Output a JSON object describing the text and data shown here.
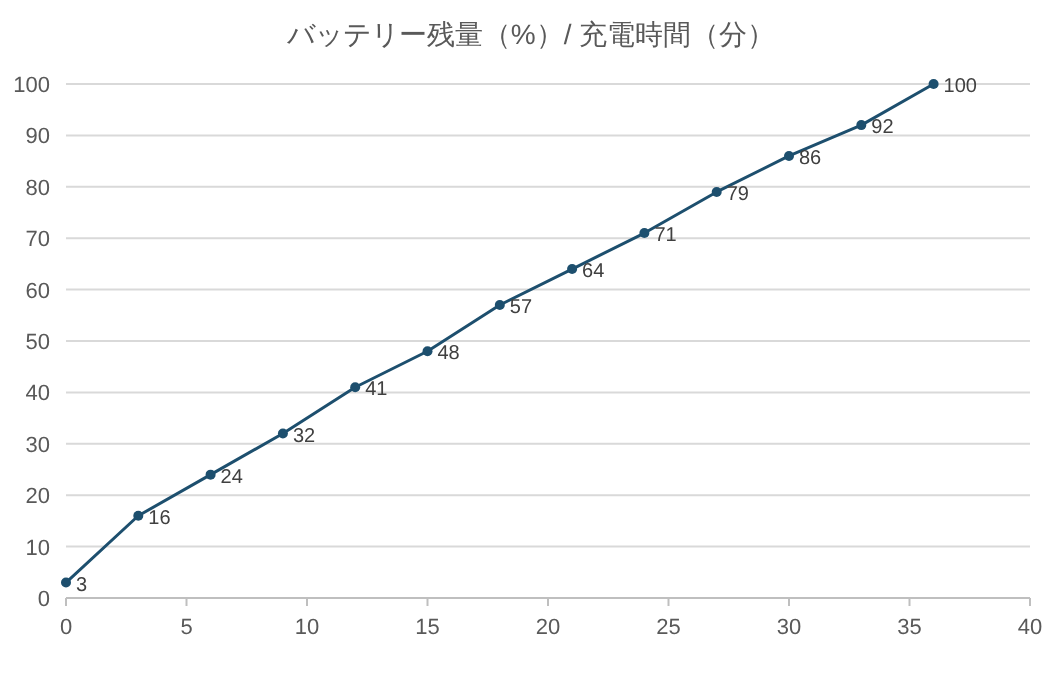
{
  "chart_data": {
    "type": "line",
    "title": "バッテリー残量（%）/ 充電時間（分）",
    "x": [
      0,
      3,
      6,
      9,
      12,
      15,
      18,
      21,
      24,
      27,
      30,
      33,
      36
    ],
    "series": [
      {
        "color": "#1d4f6e",
        "values": [
          3,
          16,
          24,
          32,
          41,
          48,
          57,
          64,
          71,
          79,
          86,
          92,
          100
        ]
      }
    ],
    "xlim": [
      0,
      40
    ],
    "xticks": [
      0,
      5,
      10,
      15,
      20,
      25,
      30,
      35,
      40
    ],
    "ylim": [
      0,
      100
    ],
    "yticks": [
      0,
      10,
      20,
      30,
      40,
      50,
      60,
      70,
      80,
      90,
      100
    ],
    "grid": "y",
    "marker": "circle",
    "line_style": "solid",
    "data_labels": true
  }
}
